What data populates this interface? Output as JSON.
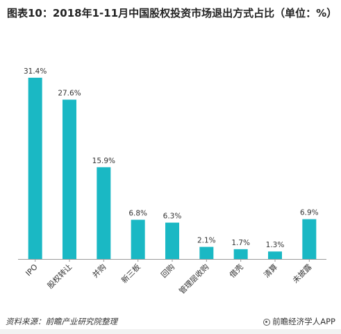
{
  "title": "图表10：2018年1-11月中国股权投资市场退出方式占比（单位：%）",
  "footer": {
    "source": "资料来源：前瞻产业研究院整理",
    "brand": "前瞻经济学人APP"
  },
  "colors": {
    "bar": "#1ab8c4",
    "axis": "#999999",
    "text": "#333333"
  },
  "chart_data": {
    "type": "bar",
    "title": "图表10：2018年1-11月中国股权投资市场退出方式占比（单位：%）",
    "categories": [
      "IPO",
      "股权转让",
      "并购",
      "新三板",
      "回购",
      "管理层收购",
      "借壳",
      "清算",
      "未披露"
    ],
    "values": [
      31.4,
      27.6,
      15.9,
      6.8,
      6.3,
      2.1,
      1.7,
      1.3,
      6.9
    ],
    "value_labels": [
      "31.4%",
      "27.6%",
      "15.9%",
      "6.8%",
      "6.3%",
      "2.1%",
      "1.7%",
      "1.3%",
      "6.9%"
    ],
    "ylim": [
      0,
      35
    ],
    "grid": false,
    "xlabel": "",
    "ylabel": ""
  }
}
